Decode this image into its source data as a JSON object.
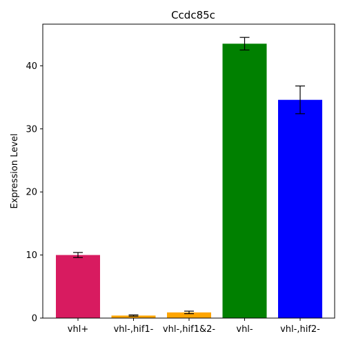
{
  "chart_data": {
    "type": "bar",
    "title": "Ccdc85c",
    "xlabel": "",
    "ylabel": "Expression Level",
    "ylim": [
      0,
      46.6
    ],
    "yticks": [
      0,
      10,
      20,
      30,
      40
    ],
    "grid": false,
    "legend": "none",
    "categories": [
      "vhl+",
      "vhl-,hif1-",
      "vhl-,hif1&2-",
      "vhl-",
      "vhl-,hif2-"
    ],
    "values": [
      10.0,
      0.4,
      0.9,
      43.5,
      34.6
    ],
    "errors": [
      0.4,
      0.1,
      0.2,
      1.0,
      2.2
    ],
    "colors": [
      "#d81b60",
      "#ffa500",
      "#ffa500",
      "#008000",
      "#0000ff"
    ]
  }
}
